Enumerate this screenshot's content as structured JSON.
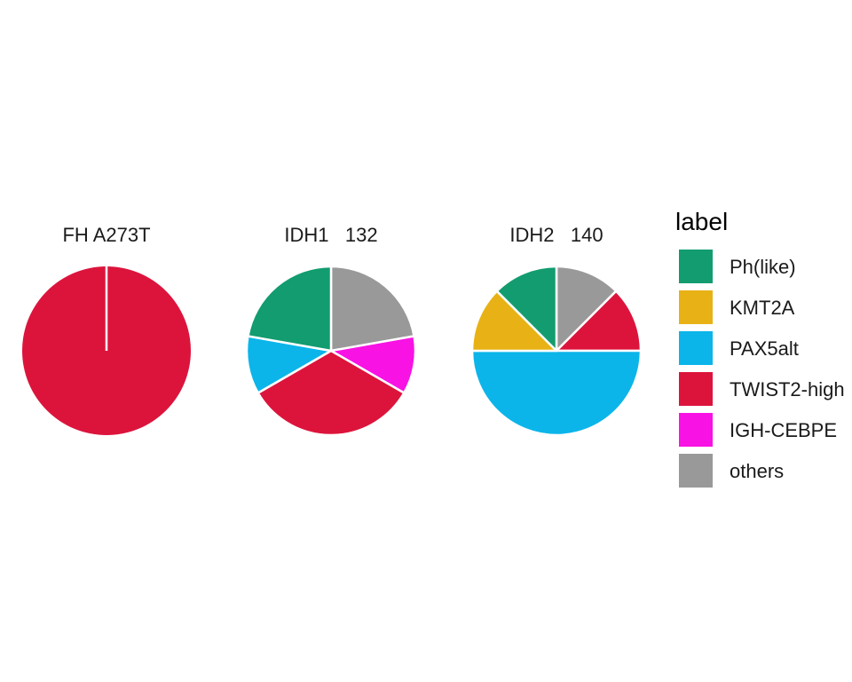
{
  "chart_data": {
    "type": "pie",
    "legend": {
      "title": "label",
      "placement": "right",
      "entries": [
        {
          "name": "Ph(like)",
          "color": "#129C6F"
        },
        {
          "name": "KMT2A",
          "color": "#E8B216"
        },
        {
          "name": "PAX5alt",
          "color": "#0BB5EA"
        },
        {
          "name": "TWIST2-high",
          "color": "#DC143C"
        },
        {
          "name": "IGH-CEBPE",
          "color": "#F812E4"
        },
        {
          "name": "others",
          "color": "#999999"
        }
      ]
    },
    "panels": [
      {
        "title": "FH A273T",
        "slices": [
          {
            "label": "TWIST2-high",
            "value": 1
          }
        ]
      },
      {
        "title": "IDH1   132",
        "slices": [
          {
            "label": "others",
            "value": 0.2
          },
          {
            "label": "IGH-CEBPE",
            "value": 0.1
          },
          {
            "label": "TWIST2-high",
            "value": 0.3
          },
          {
            "label": "PAX5alt",
            "value": 0.1
          },
          {
            "label": "Ph(like)",
            "value": 0.2
          }
        ]
      },
      {
        "title": "IDH2   140",
        "slices": [
          {
            "label": "others",
            "value": 0.125
          },
          {
            "label": "TWIST2-high",
            "value": 0.125
          },
          {
            "label": "PAX5alt",
            "value": 0.5
          },
          {
            "label": "KMT2A",
            "value": 0.125
          },
          {
            "label": "Ph(like)",
            "value": 0.125
          }
        ]
      }
    ]
  }
}
